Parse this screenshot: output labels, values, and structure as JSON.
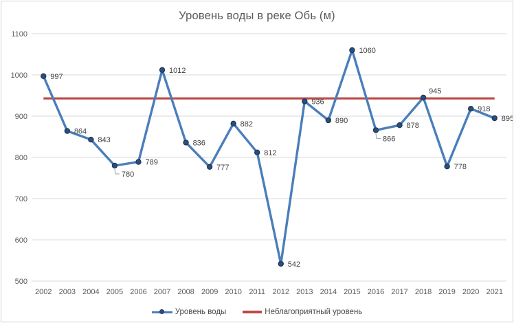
{
  "title": "Уровень воды в реке Обь (м)",
  "colors": {
    "line": "#4a7ebb",
    "marker_fill": "#2e4d77",
    "marker_stroke": "#1c365a",
    "threshold": "#bb4a45",
    "grid": "#d9d9d9",
    "axis_text": "#595959",
    "data_label": "#3f3f3f",
    "title_text": "#595959",
    "leader": "#9e9e9e",
    "frame_border": "#d0d0d0"
  },
  "chart_data": {
    "type": "line",
    "x": [
      2002,
      2003,
      2004,
      2005,
      2006,
      2007,
      2008,
      2009,
      2010,
      2011,
      2012,
      2013,
      2014,
      2015,
      2016,
      2017,
      2018,
      2019,
      2020,
      2021
    ],
    "series": [
      {
        "name": "Уровень воды",
        "type": "line",
        "values": [
          997,
          864,
          843,
          780,
          789,
          1012,
          836,
          777,
          882,
          812,
          542,
          936,
          890,
          1060,
          866,
          878,
          945,
          778,
          918,
          895
        ]
      },
      {
        "name": "Неблагоприятный уровень",
        "type": "threshold",
        "value": 943
      }
    ],
    "title": "Уровень воды в реке Обь (м)",
    "xlabel": "",
    "ylabel": "",
    "ylim": [
      500,
      1100
    ],
    "ytick_step": 100,
    "yticks": [
      500,
      600,
      700,
      800,
      900,
      1000,
      1100
    ],
    "grid": true,
    "legend_position": "bottom",
    "data_labels": true,
    "label_placements": {
      "2005": "below-leader",
      "2016": "below-leader",
      "2018": "above"
    }
  }
}
